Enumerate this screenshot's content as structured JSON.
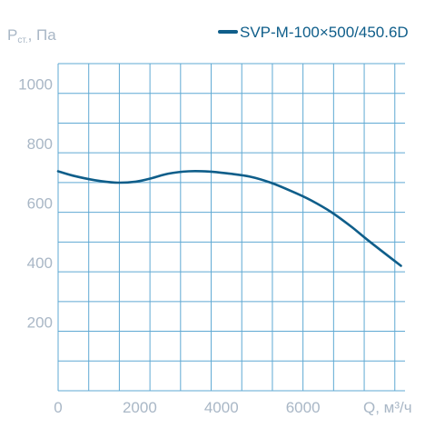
{
  "chart_data": {
    "type": "line",
    "title": "",
    "ylabel": {
      "main": "P",
      "sub": "ст.",
      "suffix": ", Па"
    },
    "xlabel": "Q, м³/ч",
    "xlim": [
      0,
      8500
    ],
    "ylim": [
      0,
      1100
    ],
    "x_ticks": [
      0,
      2000,
      4000,
      6000
    ],
    "x_tick_labels": [
      "0",
      "2000",
      "4000",
      "6000"
    ],
    "y_ticks": [
      200,
      400,
      600,
      800,
      1000
    ],
    "y_tick_labels": [
      "200",
      "400",
      "600",
      "800",
      "1000"
    ],
    "x_grid_step": 750,
    "y_grid_step": 100,
    "grid": true,
    "legend_position": "top-right",
    "series": [
      {
        "name": "SVP-M-100×500/450.6D",
        "color": "#0f5e8a",
        "x": [
          0,
          400,
          900,
          1400,
          1900,
          2300,
          2700,
          3200,
          3700,
          4200,
          4700,
          5200,
          5700,
          6200,
          6700,
          7200,
          7600,
          8400
        ],
        "y": [
          738,
          722,
          708,
          700,
          703,
          715,
          730,
          738,
          737,
          730,
          720,
          700,
          672,
          640,
          600,
          550,
          505,
          420
        ]
      }
    ]
  }
}
